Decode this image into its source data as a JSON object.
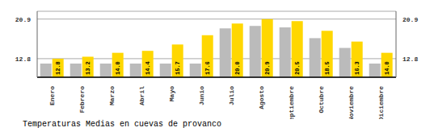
{
  "chart_data": {
    "type": "bar",
    "title": "Temperaturas Medias en cuevas de provanco",
    "categories": [
      "Enero",
      "Febrero",
      "Marzo",
      "Abril",
      "Mayo",
      "Junio",
      "Julio",
      "Agosto",
      "Septiembre",
      "Octubre",
      "Noviembre",
      "Diciembre"
    ],
    "series": [
      {
        "color": "#BBBBBB",
        "values": [
          11.8,
          11.8,
          11.8,
          11.8,
          11.8,
          11.8,
          19.0,
          19.5,
          19.2,
          17.0,
          15.0,
          11.8
        ]
      },
      {
        "color": "#FFD700",
        "values": [
          12.8,
          13.2,
          14.0,
          14.4,
          15.7,
          17.6,
          20.0,
          20.9,
          20.5,
          18.5,
          16.3,
          14.0
        ],
        "data_labels": true,
        "value_labels": [
          "12.8",
          "13.2",
          "14.0",
          "14.4",
          "15.7",
          "17.6",
          "20.0",
          "20.9",
          "20.5",
          "18.5",
          "16.3",
          "14.0"
        ]
      }
    ],
    "ylim": [
      9.0,
      22.5
    ],
    "yticks": [
      12.8,
      20.9
    ],
    "y2lim": [
      9.0,
      22.5
    ],
    "y2ticks": [
      12.8,
      20.9
    ],
    "grid": true
  }
}
